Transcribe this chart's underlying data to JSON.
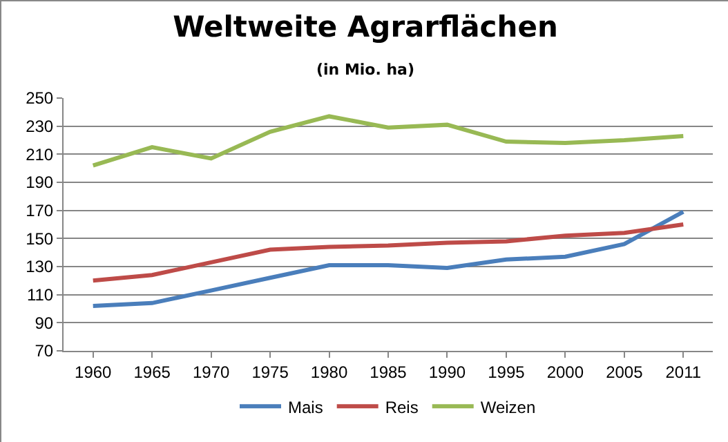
{
  "chart_data": {
    "type": "line",
    "title": "Weltweite Agrarflächen",
    "subtitle": "(in Mio. ha)",
    "categories": [
      "1960",
      "1965",
      "1970",
      "1975",
      "1980",
      "1985",
      "1990",
      "1995",
      "2000",
      "2005",
      "2011"
    ],
    "series": [
      {
        "name": "Mais",
        "color": "#4a7ebb",
        "values": [
          102,
          104,
          113,
          122,
          131,
          131,
          129,
          135,
          137,
          146,
          169
        ]
      },
      {
        "name": "Reis",
        "color": "#be4b48",
        "values": [
          120,
          124,
          133,
          142,
          144,
          145,
          147,
          148,
          152,
          154,
          160
        ]
      },
      {
        "name": "Weizen",
        "color": "#98b954",
        "values": [
          202,
          215,
          207,
          226,
          237,
          229,
          231,
          219,
          218,
          220,
          223
        ]
      }
    ],
    "ylim": [
      70,
      250
    ],
    "yticks": [
      70,
      90,
      110,
      130,
      150,
      170,
      190,
      210,
      230,
      250
    ],
    "grid": "y",
    "legend": "bottom",
    "marker": "none",
    "line_style": "solid"
  }
}
